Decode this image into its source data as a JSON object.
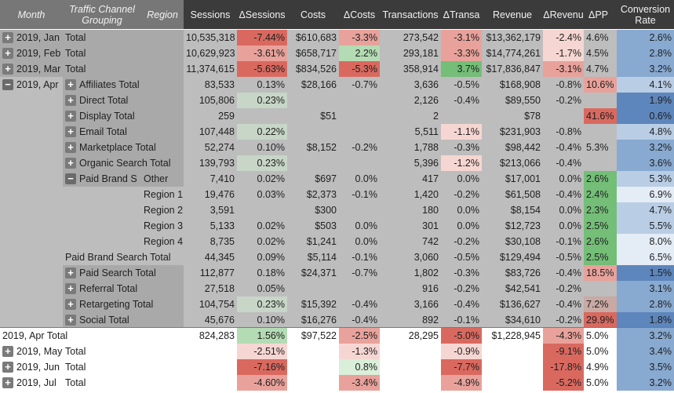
{
  "headers": {
    "month": "Month",
    "grouping": "Traffic Channel Grouping",
    "region": "Region",
    "sessions": "Sessions",
    "d_sessions": "ΔSessions",
    "costs": "Costs",
    "d_costs": "ΔCosts",
    "transactions": "Transactions",
    "d_trans": "ΔTransa",
    "revenue": "Revenue",
    "d_revenue": "ΔRevenu",
    "dpp": "ΔPP",
    "conversion": "Conversion Rate"
  },
  "colors": {
    "header_dark": "#3b3b3b",
    "header_mid": "#777777",
    "body_gray": "#bdbdbd",
    "neg_light": "#f6d6d2",
    "neg_mid": "#e8a29b",
    "neg_strong": "#d9695f",
    "pos_light": "#d9efd9",
    "pos_mid": "#b4dcb4",
    "pos_strong": "#74be78",
    "conv_light": "#b9cde5",
    "conv_mid": "#88a9d0",
    "conv_strong": "#5d86bc"
  },
  "rows": [
    {
      "kind": "month",
      "toggle": "plus",
      "label": "2019, Jan",
      "group": "Total",
      "sessions": "10,535,318",
      "d_sessions": "-7.44%",
      "costs": "$610,683",
      "d_costs": "-3.3%",
      "transactions": "273,542",
      "d_trans": "-3.1%",
      "revenue": "$13,362,179",
      "d_revenue": "-2.4%",
      "dpp": "4.6%",
      "conversion": "2.6%"
    },
    {
      "kind": "month",
      "toggle": "plus",
      "label": "2019, Feb",
      "group": "Total",
      "sessions": "10,629,923",
      "d_sessions": "-3.61%",
      "costs": "$658,717",
      "d_costs": "2.2%",
      "transactions": "293,181",
      "d_trans": "-3.3%",
      "revenue": "$14,774,261",
      "d_revenue": "-1.7%",
      "dpp": "4.5%",
      "conversion": "2.8%"
    },
    {
      "kind": "month",
      "toggle": "plus",
      "label": "2019, Mar",
      "group": "Total",
      "sessions": "11,374,615",
      "d_sessions": "-5.63%",
      "costs": "$834,526",
      "d_costs": "-5.3%",
      "transactions": "358,914",
      "d_trans": "3.7%",
      "revenue": "$17,836,847",
      "d_revenue": "-3.1%",
      "dpp": "4.7%",
      "conversion": "3.2%"
    },
    {
      "kind": "channel",
      "toggle": "minus",
      "label": "2019, Apr",
      "channel_toggle": "plus",
      "group": "Affiliates Total",
      "sessions": "83,533",
      "d_sessions": "0.13%",
      "costs": "$28,166",
      "d_costs": "-0.7%",
      "transactions": "3,636",
      "d_trans": "-0.5%",
      "revenue": "$168,908",
      "d_revenue": "-0.8%",
      "dpp": "10.6%",
      "conversion": "4.1%"
    },
    {
      "kind": "channel",
      "channel_toggle": "plus",
      "group": "Direct Total",
      "sessions": "105,806",
      "d_sessions": "0.23%",
      "costs": "",
      "d_costs": "",
      "transactions": "2,126",
      "d_trans": "-0.4%",
      "revenue": "$89,550",
      "d_revenue": "-0.2%",
      "dpp": "",
      "conversion": "1.9%"
    },
    {
      "kind": "channel",
      "channel_toggle": "plus",
      "group": "Display Total",
      "sessions": "259",
      "d_sessions": "",
      "costs": "$51",
      "d_costs": "",
      "transactions": "2",
      "d_trans": "",
      "revenue": "$78",
      "d_revenue": "",
      "dpp": "41.6%",
      "conversion": "0.6%"
    },
    {
      "kind": "channel",
      "channel_toggle": "plus",
      "group": "Email Total",
      "sessions": "107,448",
      "d_sessions": "0.22%",
      "costs": "",
      "d_costs": "",
      "transactions": "5,511",
      "d_trans": "-1.1%",
      "revenue": "$231,903",
      "d_revenue": "-0.8%",
      "dpp": "",
      "conversion": "4.8%"
    },
    {
      "kind": "channel",
      "channel_toggle": "plus",
      "group": "Marketplace Total",
      "sessions": "52,274",
      "d_sessions": "0.10%",
      "costs": "$8,152",
      "d_costs": "-0.2%",
      "transactions": "1,788",
      "d_trans": "-0.3%",
      "revenue": "$98,442",
      "d_revenue": "-0.4%",
      "dpp": "5.3%",
      "conversion": "3.2%"
    },
    {
      "kind": "channel",
      "channel_toggle": "plus",
      "group": "Organic Search Total",
      "sessions": "139,793",
      "d_sessions": "0.23%",
      "costs": "",
      "d_costs": "",
      "transactions": "5,396",
      "d_trans": "-1.2%",
      "revenue": "$213,066",
      "d_revenue": "-0.4%",
      "dpp": "",
      "conversion": "3.6%"
    },
    {
      "kind": "channel",
      "channel_toggle": "minus",
      "group": "Paid Brand S",
      "region": "Other",
      "sessions": "7,410",
      "d_sessions": "0.02%",
      "costs": "$697",
      "d_costs": "0.0%",
      "transactions": "417",
      "d_trans": "0.0%",
      "revenue": "$17,001",
      "d_revenue": "0.0%",
      "dpp": "2.6%",
      "conversion": "5.3%"
    },
    {
      "kind": "region",
      "region": "Region 1",
      "sessions": "19,476",
      "d_sessions": "0.03%",
      "costs": "$2,373",
      "d_costs": "-0.1%",
      "transactions": "1,420",
      "d_trans": "-0.2%",
      "revenue": "$61,508",
      "d_revenue": "-0.4%",
      "dpp": "2.4%",
      "conversion": "6.9%"
    },
    {
      "kind": "region",
      "region": "Region 2",
      "sessions": "3,591",
      "d_sessions": "",
      "costs": "$300",
      "d_costs": "",
      "transactions": "180",
      "d_trans": "0.0%",
      "revenue": "$8,154",
      "d_revenue": "0.0%",
      "dpp": "2.3%",
      "conversion": "4.7%"
    },
    {
      "kind": "region",
      "region": "Region 3",
      "sessions": "5,133",
      "d_sessions": "0.02%",
      "costs": "$503",
      "d_costs": "0.0%",
      "transactions": "301",
      "d_trans": "0.0%",
      "revenue": "$12,723",
      "d_revenue": "0.0%",
      "dpp": "2.5%",
      "conversion": "5.5%"
    },
    {
      "kind": "region",
      "region": "Region 4",
      "sessions": "8,735",
      "d_sessions": "0.02%",
      "costs": "$1,241",
      "d_costs": "0.0%",
      "transactions": "742",
      "d_trans": "-0.2%",
      "revenue": "$30,108",
      "d_revenue": "-0.1%",
      "dpp": "2.6%",
      "conversion": "8.0%"
    },
    {
      "kind": "subtotal",
      "group": "Paid Brand Search Total",
      "sessions": "44,345",
      "d_sessions": "0.09%",
      "costs": "$5,114",
      "d_costs": "-0.1%",
      "transactions": "3,060",
      "d_trans": "-0.5%",
      "revenue": "$129,494",
      "d_revenue": "-0.5%",
      "dpp": "2.5%",
      "conversion": "6.5%"
    },
    {
      "kind": "channel",
      "channel_toggle": "plus",
      "group": "Paid Search Total",
      "sessions": "112,877",
      "d_sessions": "0.18%",
      "costs": "$24,371",
      "d_costs": "-0.7%",
      "transactions": "1,802",
      "d_trans": "-0.3%",
      "revenue": "$83,726",
      "d_revenue": "-0.4%",
      "dpp": "18.5%",
      "conversion": "1.5%"
    },
    {
      "kind": "channel",
      "channel_toggle": "plus",
      "group": "Referral Total",
      "sessions": "27,518",
      "d_sessions": "0.05%",
      "costs": "",
      "d_costs": "",
      "transactions": "916",
      "d_trans": "-0.2%",
      "revenue": "$42,541",
      "d_revenue": "-0.2%",
      "dpp": "",
      "conversion": "3.1%"
    },
    {
      "kind": "channel",
      "channel_toggle": "plus",
      "group": "Retargeting Total",
      "sessions": "104,754",
      "d_sessions": "0.23%",
      "costs": "$15,392",
      "d_costs": "-0.4%",
      "transactions": "3,166",
      "d_trans": "-0.4%",
      "revenue": "$136,627",
      "d_revenue": "-0.4%",
      "dpp": "7.2%",
      "conversion": "2.8%"
    },
    {
      "kind": "channel",
      "channel_toggle": "plus",
      "group": "Social Total",
      "sessions": "45,676",
      "d_sessions": "0.10%",
      "costs": "$16,276",
      "d_costs": "-0.4%",
      "transactions": "892",
      "d_trans": "-0.1%",
      "revenue": "$34,610",
      "d_revenue": "-0.2%",
      "dpp": "29.9%",
      "conversion": "1.8%"
    },
    {
      "kind": "apr_total",
      "label": "2019, Apr Total",
      "sessions": "824,283",
      "d_sessions": "1.56%",
      "costs": "$97,522",
      "d_costs": "-2.5%",
      "transactions": "28,295",
      "d_trans": "-5.0%",
      "revenue": "$1,228,945",
      "d_revenue": "-4.3%",
      "dpp": "5.0%",
      "conversion": "3.2%"
    },
    {
      "kind": "lower",
      "toggle": "plus",
      "label": "2019, May",
      "group": "Total",
      "sessions": "",
      "d_sessions": "-2.51%",
      "costs": "",
      "d_costs": "-1.3%",
      "transactions": "",
      "d_trans": "-0.9%",
      "revenue": "",
      "d_revenue": "-9.1%",
      "dpp": "5.0%",
      "conversion": "3.4%"
    },
    {
      "kind": "lower",
      "toggle": "plus",
      "label": "2019, Jun",
      "group": "Total",
      "sessions": "",
      "d_sessions": "-7.16%",
      "costs": "",
      "d_costs": "0.8%",
      "transactions": "",
      "d_trans": "-7.7%",
      "revenue": "",
      "d_revenue": "-17.8%",
      "dpp": "4.9%",
      "conversion": "3.5%"
    },
    {
      "kind": "lower",
      "toggle": "plus",
      "label": "2019, Jul",
      "group": "Total",
      "sessions": "",
      "d_sessions": "-4.60%",
      "costs": "",
      "d_costs": "-3.4%",
      "transactions": "",
      "d_trans": "-4.9%",
      "revenue": "",
      "d_revenue": "-5.2%",
      "dpp": "5.0%",
      "conversion": "3.2%"
    }
  ]
}
